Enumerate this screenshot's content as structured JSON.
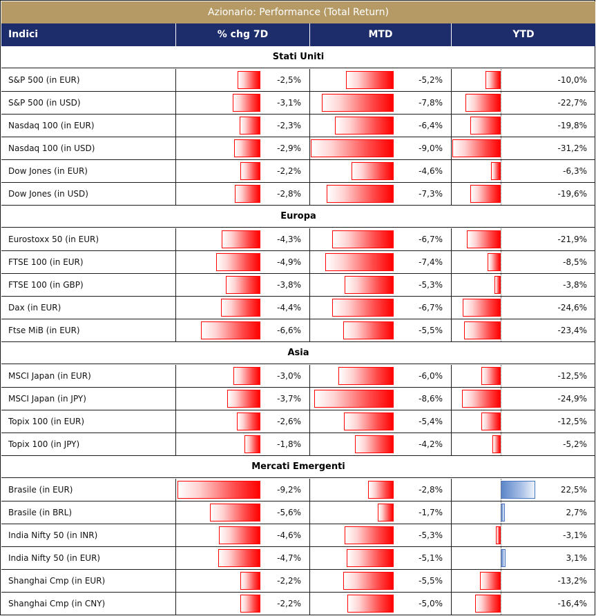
{
  "title": "Azionario: Performance (Total Return)",
  "headers": {
    "index": "Indici",
    "chg7d": "% chg 7D",
    "mtd": "MTD",
    "ytd": "YTD"
  },
  "colors": {
    "title_bg": "#b59a66",
    "header_bg": "#1d2c6b",
    "negative": "#ff0000",
    "positive": "#5b86c9"
  },
  "sections": [
    {
      "name": "Stati Uniti",
      "rows": [
        {
          "name": "S&P 500 (in EUR)",
          "chg7d": -2.5,
          "mtd": -5.2,
          "ytd": -10.0,
          "chg7d_label": "-2,5%",
          "mtd_label": "-5,2%",
          "ytd_label": "-10,0%"
        },
        {
          "name": "S&P 500 (in USD)",
          "chg7d": -3.1,
          "mtd": -7.8,
          "ytd": -22.7,
          "chg7d_label": "-3,1%",
          "mtd_label": "-7,8%",
          "ytd_label": "-22,7%"
        },
        {
          "name": "Nasdaq 100 (in EUR)",
          "chg7d": -2.3,
          "mtd": -6.4,
          "ytd": -19.8,
          "chg7d_label": "-2,3%",
          "mtd_label": "-6,4%",
          "ytd_label": "-19,8%"
        },
        {
          "name": "Nasdaq 100 (in USD)",
          "chg7d": -2.9,
          "mtd": -9.0,
          "ytd": -31.2,
          "chg7d_label": "-2,9%",
          "mtd_label": "-9,0%",
          "ytd_label": "-31,2%"
        },
        {
          "name": "Dow Jones (in EUR)",
          "chg7d": -2.2,
          "mtd": -4.6,
          "ytd": -6.3,
          "chg7d_label": "-2,2%",
          "mtd_label": "-4,6%",
          "ytd_label": "-6,3%"
        },
        {
          "name": "Dow Jones (in USD)",
          "chg7d": -2.8,
          "mtd": -7.3,
          "ytd": -19.6,
          "chg7d_label": "-2,8%",
          "mtd_label": "-7,3%",
          "ytd_label": "-19,6%"
        }
      ]
    },
    {
      "name": "Europa",
      "rows": [
        {
          "name": "Eurostoxx 50 (in EUR)",
          "chg7d": -4.3,
          "mtd": -6.7,
          "ytd": -21.9,
          "chg7d_label": "-4,3%",
          "mtd_label": "-6,7%",
          "ytd_label": "-21,9%"
        },
        {
          "name": "FTSE 100 (in EUR)",
          "chg7d": -4.9,
          "mtd": -7.4,
          "ytd": -8.5,
          "chg7d_label": "-4,9%",
          "mtd_label": "-7,4%",
          "ytd_label": "-8,5%"
        },
        {
          "name": "FTSE 100 (in GBP)",
          "chg7d": -3.8,
          "mtd": -5.3,
          "ytd": -3.8,
          "chg7d_label": "-3,8%",
          "mtd_label": "-5,3%",
          "ytd_label": "-3,8%"
        },
        {
          "name": "Dax (in EUR)",
          "chg7d": -4.4,
          "mtd": -6.7,
          "ytd": -24.6,
          "chg7d_label": "-4,4%",
          "mtd_label": "-6,7%",
          "ytd_label": "-24,6%"
        },
        {
          "name": "Ftse MiB (in EUR)",
          "chg7d": -6.6,
          "mtd": -5.5,
          "ytd": -23.4,
          "chg7d_label": "-6,6%",
          "mtd_label": "-5,5%",
          "ytd_label": "-23,4%"
        }
      ]
    },
    {
      "name": "Asia",
      "rows": [
        {
          "name": "MSCI Japan (in EUR)",
          "chg7d": -3.0,
          "mtd": -6.0,
          "ytd": -12.5,
          "chg7d_label": "-3,0%",
          "mtd_label": "-6,0%",
          "ytd_label": "-12,5%"
        },
        {
          "name": "MSCI Japan (in JPY)",
          "chg7d": -3.7,
          "mtd": -8.6,
          "ytd": -24.9,
          "chg7d_label": "-3,7%",
          "mtd_label": "-8,6%",
          "ytd_label": "-24,9%"
        },
        {
          "name": "Topix 100 (in EUR)",
          "chg7d": -2.6,
          "mtd": -5.4,
          "ytd": -12.5,
          "chg7d_label": "-2,6%",
          "mtd_label": "-5,4%",
          "ytd_label": "-12,5%"
        },
        {
          "name": "Topix 100 (in JPY)",
          "chg7d": -1.8,
          "mtd": -4.2,
          "ytd": -5.2,
          "chg7d_label": "-1,8%",
          "mtd_label": "-4,2%",
          "ytd_label": "-5,2%"
        }
      ]
    },
    {
      "name": "Mercati Emergenti",
      "rows": [
        {
          "name": "Brasile (in EUR)",
          "chg7d": -9.2,
          "mtd": -2.8,
          "ytd": 22.5,
          "chg7d_label": "-9,2%",
          "mtd_label": "-2,8%",
          "ytd_label": "22,5%"
        },
        {
          "name": "Brasile (in BRL)",
          "chg7d": -5.6,
          "mtd": -1.7,
          "ytd": 2.7,
          "chg7d_label": "-5,6%",
          "mtd_label": "-1,7%",
          "ytd_label": "2,7%"
        },
        {
          "name": "India Nifty 50 (in INR)",
          "chg7d": -4.6,
          "mtd": -5.3,
          "ytd": -3.1,
          "chg7d_label": "-4,6%",
          "mtd_label": "-5,3%",
          "ytd_label": "-3,1%"
        },
        {
          "name": "India Nifty 50 (in EUR)",
          "chg7d": -4.7,
          "mtd": -5.1,
          "ytd": 3.1,
          "chg7d_label": "-4,7%",
          "mtd_label": "-5,1%",
          "ytd_label": "3,1%"
        },
        {
          "name": "Shanghai Cmp (in EUR)",
          "chg7d": -2.2,
          "mtd": -5.5,
          "ytd": -13.2,
          "chg7d_label": "-2,2%",
          "mtd_label": "-5,5%",
          "ytd_label": "-13,2%"
        },
        {
          "name": "Shanghai Cmp (in CNY)",
          "chg7d": -2.2,
          "mtd": -5.0,
          "ytd": -16.4,
          "chg7d_label": "-2,2%",
          "mtd_label": "-5,0%",
          "ytd_label": "-16,4%"
        }
      ]
    }
  ]
}
